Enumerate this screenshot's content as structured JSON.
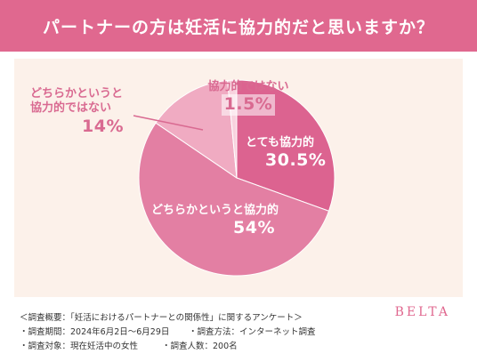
{
  "header": {
    "title": "パートナーの方は妊活に協力的だと思いますか？"
  },
  "chart_data": {
    "type": "pie",
    "title": "パートナーの方は妊活に協力的だと思いますか？",
    "start": "12 o'clock, clockwise",
    "slices": [
      {
        "label": "とても協力的",
        "value": 30.5,
        "display": "30.5%",
        "color": "#dc6390"
      },
      {
        "label": "どちらかというと協力的",
        "value": 54,
        "display": "54%",
        "color": "#e37fa3"
      },
      {
        "label": "どちらかというと協力的ではない",
        "label_line1": "どちらかというと",
        "label_line2": "協力的ではない",
        "value": 14,
        "display": "14%",
        "color": "#f0abc2"
      },
      {
        "label": "協力的ではない",
        "value": 1.5,
        "display": "1.5%",
        "color": "#f8d2de"
      }
    ]
  },
  "footer": {
    "line1": "＜調査概要：「妊活におけるパートナーとの関係性」に関するアンケート＞",
    "line2a": "・調査期間：2024年6月2日～6月29日",
    "line2b": "・調査方法：インターネット調査",
    "line3a": "・調査対象：現在妊活中の女性",
    "line3b": "・調査人数：200名"
  },
  "brand": "BELTA"
}
